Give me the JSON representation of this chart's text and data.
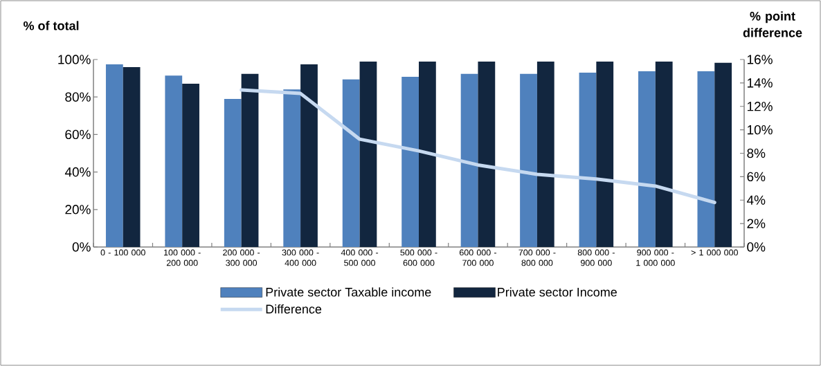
{
  "chart_data": {
    "type": "bar",
    "categories": [
      "0 - 100 000",
      "100 000 - 200 000",
      "200 000 - 300 000",
      "300 000 - 400 000",
      "400 000 - 500 000",
      "500 000 - 600 000",
      "600 000 - 700 000",
      "700 000 - 800 000",
      "800 000 - 900 000",
      "900 000 - 1 000 000",
      "> 1 000 000"
    ],
    "ylabel": "% of total",
    "y2label": "% point difference",
    "ylim": [
      0,
      100
    ],
    "yticks": [
      {
        "value": 0,
        "label": "0%"
      },
      {
        "value": 20,
        "label": "20%"
      },
      {
        "value": 40,
        "label": "40%"
      },
      {
        "value": 60,
        "label": "60%"
      },
      {
        "value": 80,
        "label": "80%"
      },
      {
        "value": 100,
        "label": "100%"
      }
    ],
    "y2lim": [
      0,
      16
    ],
    "y2ticks": [
      {
        "value": 0,
        "label": "0%"
      },
      {
        "value": 2,
        "label": "2%"
      },
      {
        "value": 4,
        "label": "4%"
      },
      {
        "value": 6,
        "label": "6%"
      },
      {
        "value": 8,
        "label": "8%"
      },
      {
        "value": 10,
        "label": "10%"
      },
      {
        "value": 12,
        "label": "12%"
      },
      {
        "value": 14,
        "label": "14%"
      },
      {
        "value": 16,
        "label": "16%"
      }
    ],
    "legend": "bottom",
    "series": [
      {
        "name": "Private sector Taxable income",
        "color": "#4f81bd",
        "values": [
          97.4,
          91.4,
          79.0,
          84.0,
          89.4,
          90.8,
          92.3,
          92.3,
          93.0,
          93.7,
          93.7
        ]
      },
      {
        "name": "Private sector Income",
        "color": "#12263f",
        "values": [
          95.9,
          87.1,
          92.3,
          97.4,
          98.9,
          98.9,
          98.9,
          98.9,
          98.9,
          98.9,
          98.2
        ]
      },
      {
        "name": "Difference",
        "type": "line",
        "axis": "y2",
        "color": "#c6d9f0",
        "values": [
          null,
          null,
          13.4,
          13.1,
          9.2,
          8.2,
          7.0,
          6.2,
          5.8,
          5.2,
          3.8
        ]
      }
    ]
  }
}
